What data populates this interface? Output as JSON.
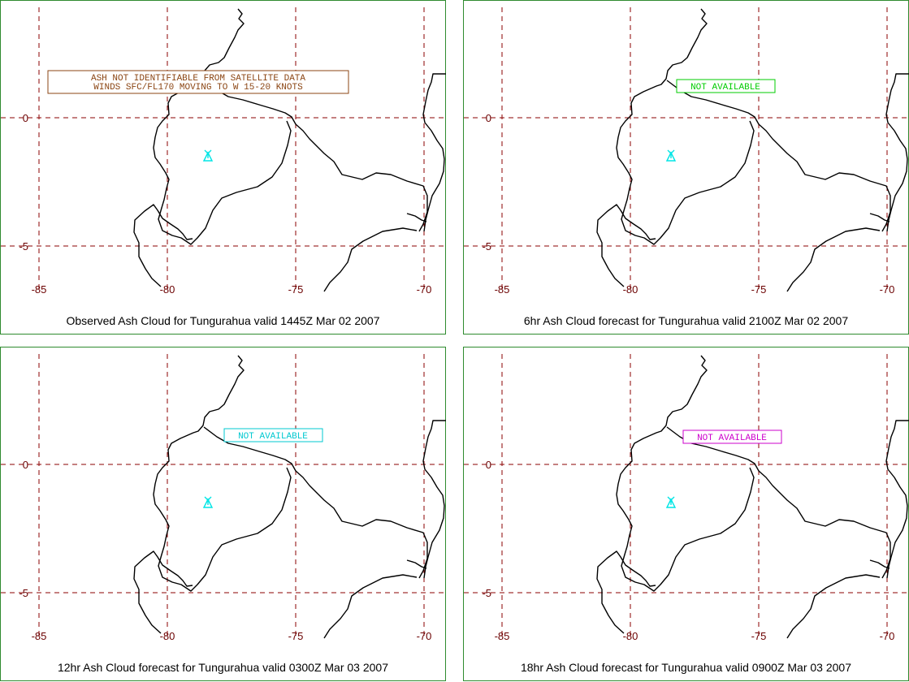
{
  "colors": {
    "panel_border": "#2e8b2e",
    "grid": "#8b0000",
    "tick_label": "#6b0000",
    "coastline": "#000000",
    "volcano_marker": "#00e5e5"
  },
  "axes": {
    "lon_ticks": [
      "-85",
      "-80",
      "-75",
      "-70"
    ],
    "lat_ticks": [
      "0",
      "-5"
    ]
  },
  "panels": [
    {
      "id": "observed",
      "caption": "Observed Ash Cloud for Tungurahua valid 1445Z Mar 02 2007",
      "note_lines": [
        "ASH NOT IDENTIFIABLE FROM SATELLITE DATA",
        "WINDS SFC/FL170 MOVING TO W 15-20 KNOTS"
      ],
      "note_color": "#8b4513",
      "volcano_icon": "volcano-marker-icon"
    },
    {
      "id": "forecast-6hr",
      "caption": "6hr Ash Cloud forecast for Tungurahua valid 2100Z Mar 02 2007",
      "note_lines": [
        "NOT AVAILABLE"
      ],
      "note_color": "#00cc00",
      "volcano_icon": "volcano-marker-icon"
    },
    {
      "id": "forecast-12hr",
      "caption": "12hr Ash Cloud forecast for Tungurahua valid 0300Z Mar 03 2007",
      "note_lines": [
        "NOT AVAILABLE"
      ],
      "note_color": "#00c8d0",
      "volcano_icon": "volcano-marker-icon"
    },
    {
      "id": "forecast-18hr",
      "caption": "18hr Ash Cloud forecast for Tungurahua valid 0900Z Mar 03 2007",
      "note_lines": [
        "NOT AVAILABLE"
      ],
      "note_color": "#cc00cc",
      "volcano_icon": "volcano-marker-icon"
    }
  ]
}
